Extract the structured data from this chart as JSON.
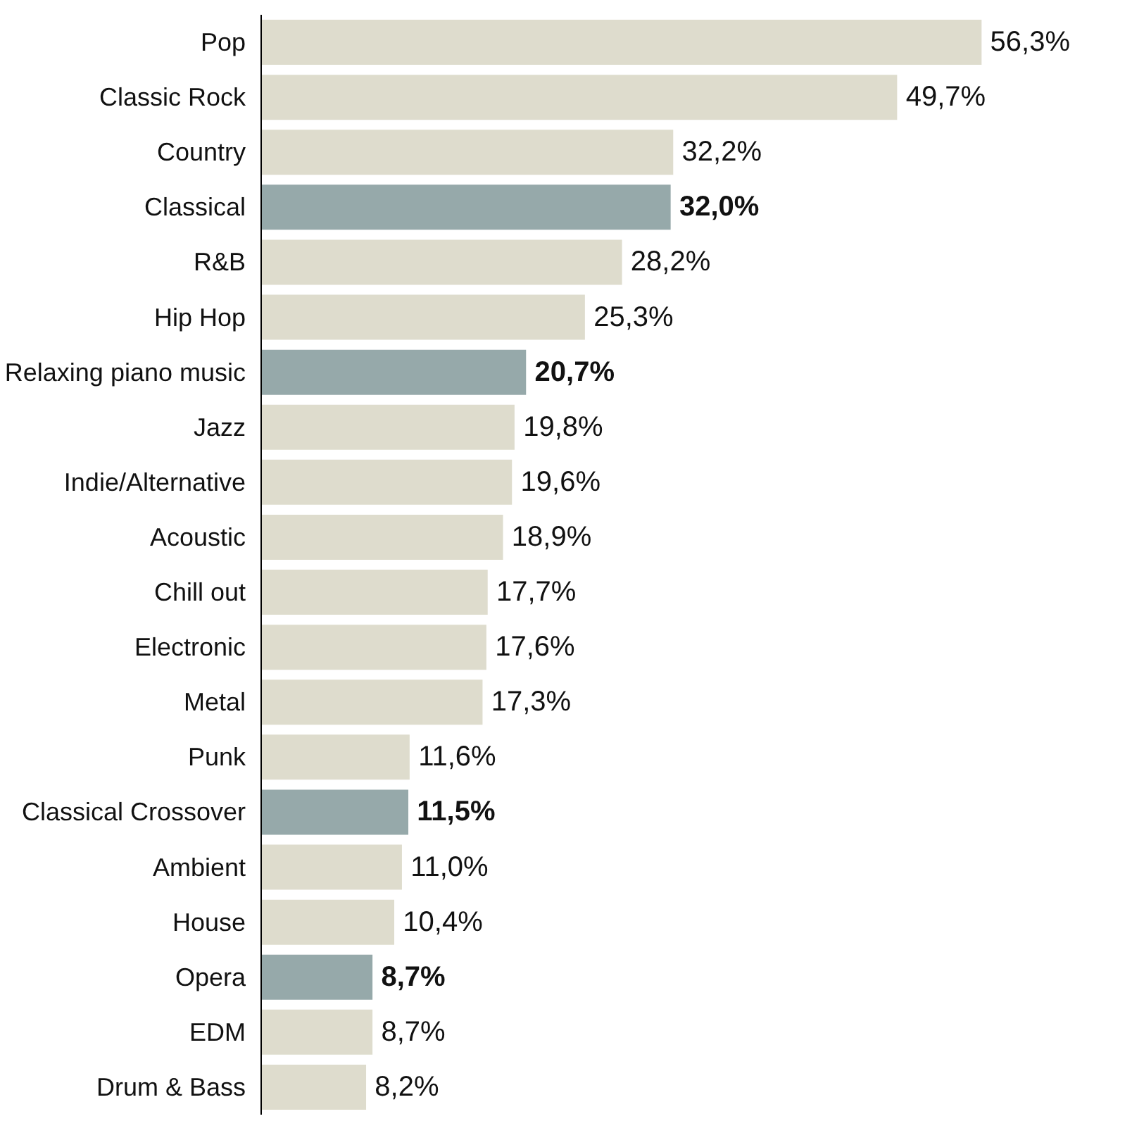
{
  "chart_data": {
    "type": "bar",
    "orientation": "horizontal",
    "categories": [
      "Pop",
      "Classic Rock",
      "Country",
      "Classical",
      "R&B",
      "Hip Hop",
      "Relaxing piano music",
      "Jazz",
      "Indie/Alternative",
      "Acoustic",
      "Chill out",
      "Electronic",
      "Metal",
      "Punk",
      "Classical Crossover",
      "Ambient",
      "House",
      "Opera",
      "EDM",
      "Drum & Bass"
    ],
    "values": [
      56.3,
      49.7,
      32.2,
      32.0,
      28.2,
      25.3,
      20.7,
      19.8,
      19.6,
      18.9,
      17.7,
      17.6,
      17.3,
      11.6,
      11.5,
      11.0,
      10.4,
      8.7,
      8.7,
      8.2
    ],
    "colors": [
      "#dedccd",
      "#dedccd",
      "#dedccd",
      "#96a9aa",
      "#dedccd",
      "#dedccd",
      "#96a9aa",
      "#dedccd",
      "#dedccd",
      "#dedccd",
      "#dedccd",
      "#dedccd",
      "#dedccd",
      "#dedccd",
      "#96a9aa",
      "#dedccd",
      "#dedccd",
      "#96a9aa",
      "#dedccd",
      "#dedccd"
    ],
    "value_labels": [
      "56,3%",
      "49,7%",
      "32,2%",
      "32,0%",
      "28,2%",
      "25,3%",
      "20,7%",
      "19,8%",
      "19,6%",
      "18,9%",
      "17,7%",
      "17,6%",
      "17,3%",
      "11,6%",
      "11,5%",
      "11,0%",
      "10,4%",
      "8,7%",
      "8,7%",
      "8,2%"
    ],
    "grid": false
  }
}
